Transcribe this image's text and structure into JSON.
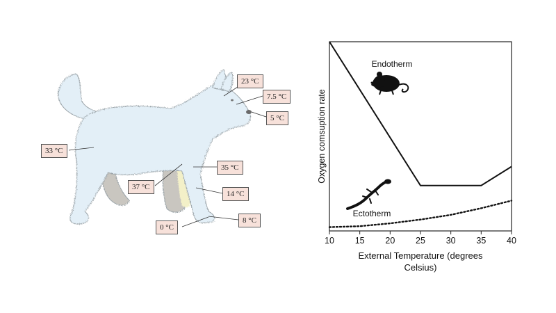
{
  "wolf_diagram": {
    "labels": [
      {
        "id": "ear",
        "text": "23 °C"
      },
      {
        "id": "muzzle-upper",
        "text": "7.5 °C"
      },
      {
        "id": "nose",
        "text": "5 °C"
      },
      {
        "id": "body",
        "text": "33 °C"
      },
      {
        "id": "shoulder",
        "text": "35 °C"
      },
      {
        "id": "core",
        "text": "37 °C"
      },
      {
        "id": "lower-leg",
        "text": "14 °C"
      },
      {
        "id": "foot",
        "text": "8 °C"
      },
      {
        "id": "paw-pad",
        "text": "0 °C"
      }
    ],
    "colors": {
      "fur": "#e3eff7",
      "fur_stroke": "#9aa3a8",
      "far_legs": "#c9c6c0",
      "warm_leg": "#f3f0c8",
      "label_bg": "#f7e1da"
    }
  },
  "chart_data": {
    "type": "line",
    "xlabel": "External Temperature (degrees Celsius)",
    "xlabel_lines": [
      "External Temperature (degrees",
      "Celsius)"
    ],
    "ylabel": "Oxygen comsuption rate",
    "xlim": [
      10,
      40
    ],
    "ylim": [
      0,
      100
    ],
    "xticks": [
      10,
      15,
      20,
      25,
      30,
      35,
      40
    ],
    "series": [
      {
        "name": "Endotherm",
        "style": "solid",
        "icon": "mouse-icon",
        "points": [
          [
            10,
            100
          ],
          [
            25,
            24
          ],
          [
            35,
            24
          ],
          [
            40,
            34
          ]
        ]
      },
      {
        "name": "Ectotherm",
        "style": "dotted",
        "icon": "lizard-icon",
        "points": [
          [
            10,
            2
          ],
          [
            15,
            2.5
          ],
          [
            20,
            4
          ],
          [
            25,
            6
          ],
          [
            30,
            8.5
          ],
          [
            35,
            12
          ],
          [
            40,
            16
          ]
        ]
      }
    ]
  }
}
